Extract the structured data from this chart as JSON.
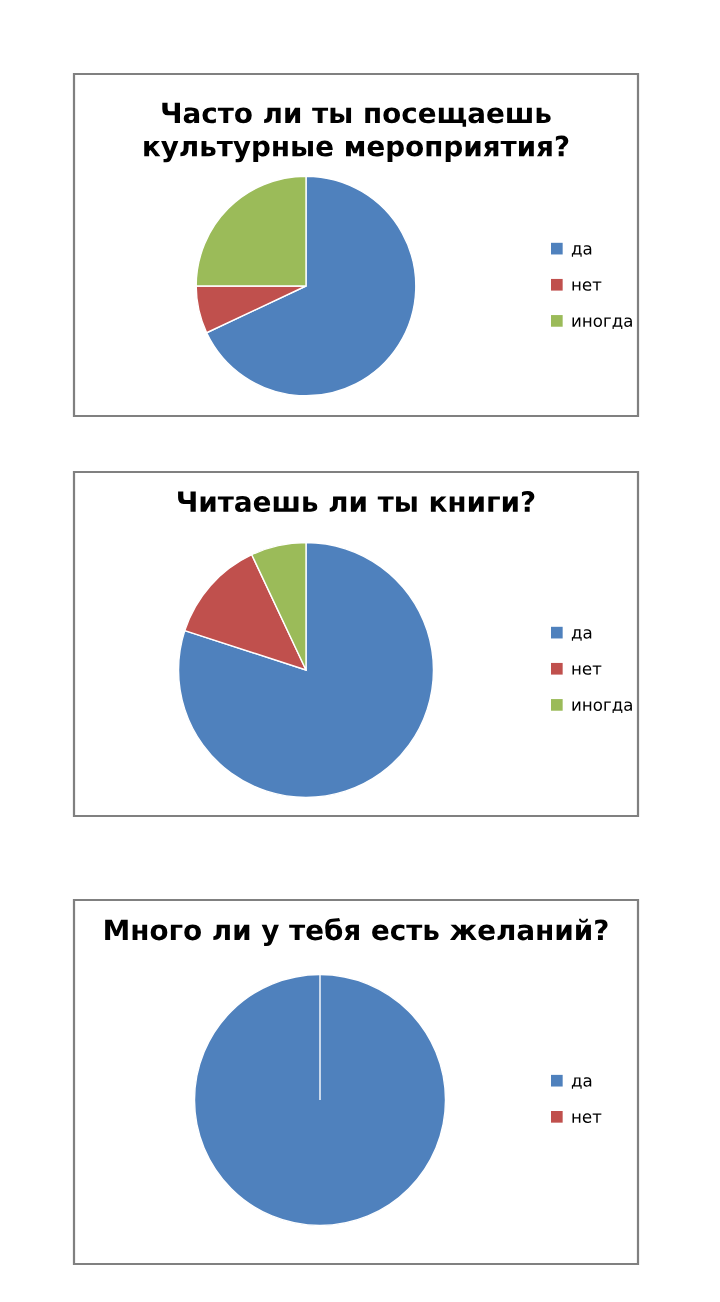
{
  "chart_data": [
    {
      "type": "pie",
      "title": "Часто ли ты посещаешь\nкультурные мероприятия?",
      "categories": [
        "да",
        "нет",
        "иногда"
      ],
      "values": [
        68,
        7,
        25
      ],
      "colors": [
        "#4f81bd",
        "#c0504d",
        "#9bbb59"
      ],
      "legend": "right"
    },
    {
      "type": "pie",
      "title": "Читаешь ли ты книги?",
      "categories": [
        "да",
        "нет",
        "иногда"
      ],
      "values": [
        80,
        13,
        7
      ],
      "colors": [
        "#4f81bd",
        "#c0504d",
        "#9bbb59"
      ],
      "legend": "right"
    },
    {
      "type": "pie",
      "title": "Много ли у тебя есть желаний?",
      "categories": [
        "да",
        "нет"
      ],
      "values": [
        100,
        0
      ],
      "colors": [
        "#4f81bd",
        "#c0504d"
      ],
      "legend": "right"
    }
  ]
}
